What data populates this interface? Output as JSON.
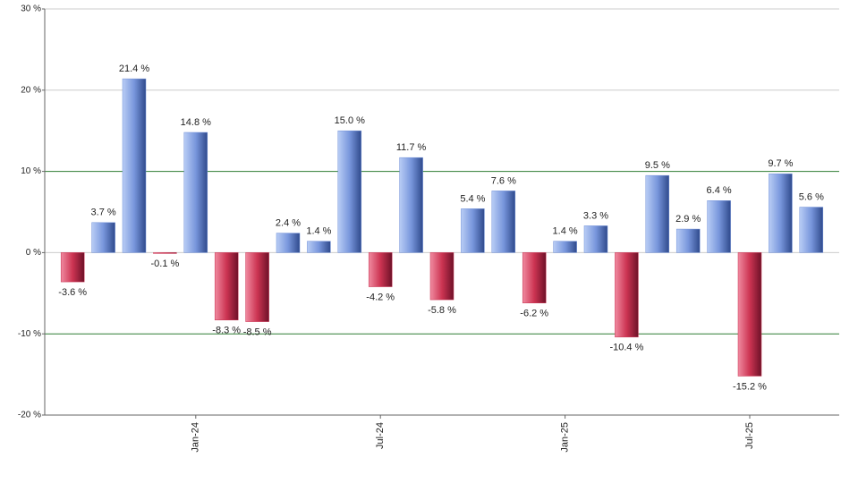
{
  "chart_data": {
    "type": "bar",
    "categories": [
      null,
      null,
      null,
      null,
      "Jan-24",
      null,
      null,
      null,
      null,
      null,
      "Jul-24",
      null,
      null,
      null,
      null,
      null,
      "Jan-25",
      null,
      null,
      null,
      null,
      null,
      "Jul-25",
      null,
      null
    ],
    "values": [
      -3.6,
      3.7,
      21.4,
      -0.1,
      14.8,
      -8.3,
      -8.5,
      2.4,
      1.4,
      15.0,
      -4.2,
      11.7,
      -5.8,
      5.4,
      7.6,
      -6.2,
      1.4,
      3.3,
      -10.4,
      9.5,
      2.9,
      6.4,
      -15.2,
      9.7,
      5.6
    ],
    "value_labels": [
      "-3.6 %",
      "3.7 %",
      "21.4 %",
      "-0.1 %",
      "14.8 %",
      "-8.3 %",
      "-8.5 %",
      "2.4 %",
      "1.4 %",
      "15.0 %",
      "-4.2 %",
      "11.7 %",
      "-5.8 %",
      "5.4 %",
      "7.6 %",
      "-6.2 %",
      "1.4 %",
      "3.3 %",
      "-10.4 %",
      "9.5 %",
      "2.9 %",
      "6.4 %",
      "-15.2 %",
      "9.7 %",
      "5.6 %"
    ],
    "positive_color": "#6f8fd8",
    "negative_color": "#c8304f",
    "ylim": [
      -20,
      30
    ],
    "yticks": [
      {
        "value": -20,
        "label": "-20 %"
      },
      {
        "value": -10,
        "label": "-10 %"
      },
      {
        "value": 0,
        "label": "0 %"
      },
      {
        "value": 10,
        "label": "10 %"
      },
      {
        "value": 20,
        "label": "20 %"
      },
      {
        "value": 30,
        "label": "30 %"
      }
    ],
    "grid": true,
    "reference_lines": {
      "values": [
        -10,
        10
      ],
      "color": "#2e7d32"
    }
  }
}
